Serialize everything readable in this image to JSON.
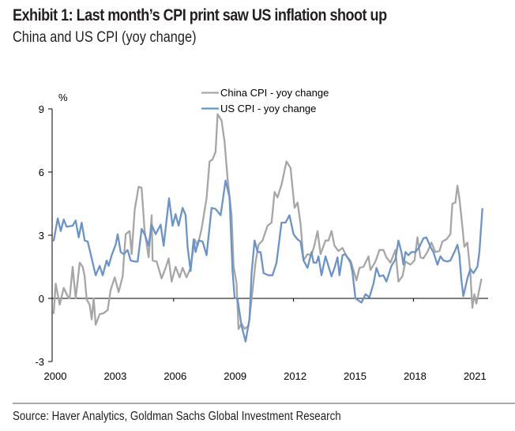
{
  "header": {
    "title": "Exhibit 1: Last month’s CPI print saw US inflation shoot up",
    "subtitle": "China and US CPI (yoy change)"
  },
  "footer": {
    "source": "Source: Haver Analytics, Goldman Sachs Global Investment Research"
  },
  "chart_data": {
    "type": "line",
    "title": "China and US CPI (yoy change)",
    "xlabel": "",
    "ylabel": "%",
    "xlim": [
      2000,
      2021.7
    ],
    "ylim": [
      -3,
      9
    ],
    "x_ticks": [
      2000,
      2003,
      2006,
      2009,
      2012,
      2015,
      2018,
      2021
    ],
    "x_tick_labels": [
      "2000",
      "2003",
      "2006",
      "2009",
      "2012",
      "2015",
      "2018",
      "2021"
    ],
    "y_ticks": [
      -3,
      0,
      3,
      6,
      9
    ],
    "y_tick_labels": [
      "-3",
      "0",
      "3",
      "6",
      "9"
    ],
    "grid": false,
    "legend_position": "top-center",
    "series": [
      {
        "name": "China CPI - yoy change",
        "color": "#a6a6a6",
        "points": [
          [
            2000.0,
            -0.7
          ],
          [
            2000.1,
            0.7
          ],
          [
            2000.3,
            -0.3
          ],
          [
            2000.5,
            0.5
          ],
          [
            2000.75,
            0.0
          ],
          [
            2000.8,
            0.0
          ],
          [
            2000.95,
            1.5
          ],
          [
            2001.1,
            0.0
          ],
          [
            2001.3,
            1.7
          ],
          [
            2001.45,
            1.5
          ],
          [
            2001.55,
            1.05
          ],
          [
            2001.65,
            -0.05
          ],
          [
            2001.8,
            -0.3
          ],
          [
            2001.9,
            -1.0
          ],
          [
            2002.0,
            0.0
          ],
          [
            2002.1,
            -1.25
          ],
          [
            2002.3,
            -0.75
          ],
          [
            2002.5,
            -0.7
          ],
          [
            2002.7,
            -0.55
          ],
          [
            2002.85,
            0.4
          ],
          [
            2003.05,
            1.0
          ],
          [
            2003.25,
            0.3
          ],
          [
            2003.45,
            1.05
          ],
          [
            2003.6,
            3.05
          ],
          [
            2003.8,
            3.2
          ],
          [
            2003.9,
            2.1
          ],
          [
            2004.05,
            4.2
          ],
          [
            2004.25,
            5.3
          ],
          [
            2004.4,
            5.25
          ],
          [
            2004.55,
            3.2
          ],
          [
            2004.75,
            1.95
          ],
          [
            2004.9,
            3.95
          ],
          [
            2004.95,
            1.8
          ],
          [
            2005.15,
            1.75
          ],
          [
            2005.4,
            0.95
          ],
          [
            2005.6,
            1.45
          ],
          [
            2005.75,
            1.9
          ],
          [
            2005.9,
            0.8
          ],
          [
            2006.1,
            1.5
          ],
          [
            2006.3,
            1.0
          ],
          [
            2006.45,
            1.45
          ],
          [
            2006.65,
            1.0
          ],
          [
            2006.85,
            1.45
          ],
          [
            2007.05,
            2.8
          ],
          [
            2007.2,
            2.5
          ],
          [
            2007.4,
            3.3
          ],
          [
            2007.65,
            4.75
          ],
          [
            2007.8,
            6.5
          ],
          [
            2007.95,
            6.6
          ],
          [
            2008.1,
            6.95
          ],
          [
            2008.2,
            8.75
          ],
          [
            2008.4,
            8.45
          ],
          [
            2008.55,
            7.45
          ],
          [
            2008.7,
            5.7
          ],
          [
            2008.9,
            3.95
          ],
          [
            2009.0,
            1.55
          ],
          [
            2009.15,
            0.7
          ],
          [
            2009.25,
            -1.45
          ],
          [
            2009.4,
            -1.2
          ],
          [
            2009.55,
            -1.45
          ],
          [
            2009.75,
            -1.3
          ],
          [
            2009.9,
            -0.05
          ],
          [
            2010.1,
            1.7
          ],
          [
            2010.25,
            2.55
          ],
          [
            2010.45,
            2.75
          ],
          [
            2010.7,
            3.45
          ],
          [
            2010.9,
            3.6
          ],
          [
            2011.05,
            5.05
          ],
          [
            2011.2,
            4.8
          ],
          [
            2011.4,
            5.4
          ],
          [
            2011.65,
            6.5
          ],
          [
            2011.85,
            6.2
          ],
          [
            2012.05,
            4.3
          ],
          [
            2012.2,
            4.55
          ],
          [
            2012.35,
            3.55
          ],
          [
            2012.5,
            1.8
          ],
          [
            2012.7,
            2.1
          ],
          [
            2012.9,
            2.05
          ],
          [
            2013.05,
            2.55
          ],
          [
            2013.2,
            3.2
          ],
          [
            2013.35,
            2.1
          ],
          [
            2013.6,
            2.75
          ],
          [
            2013.75,
            2.75
          ],
          [
            2013.9,
            3.2
          ],
          [
            2014.05,
            2.5
          ],
          [
            2014.25,
            2.25
          ],
          [
            2014.45,
            2.4
          ],
          [
            2014.65,
            2.0
          ],
          [
            2014.85,
            1.8
          ],
          [
            2014.95,
            1.5
          ],
          [
            2015.15,
            0.85
          ],
          [
            2015.3,
            1.45
          ],
          [
            2015.5,
            1.5
          ],
          [
            2015.75,
            2.0
          ],
          [
            2015.85,
            1.35
          ],
          [
            2016.1,
            1.75
          ],
          [
            2016.3,
            2.3
          ],
          [
            2016.5,
            2.3
          ],
          [
            2016.65,
            1.95
          ],
          [
            2016.85,
            1.7
          ],
          [
            2017.1,
            2.3
          ],
          [
            2017.25,
            0.8
          ],
          [
            2017.45,
            1.05
          ],
          [
            2017.6,
            1.75
          ],
          [
            2017.85,
            1.6
          ],
          [
            2018.05,
            1.8
          ],
          [
            2018.2,
            2.9
          ],
          [
            2018.35,
            1.95
          ],
          [
            2018.5,
            1.9
          ],
          [
            2018.7,
            2.2
          ],
          [
            2018.9,
            2.65
          ],
          [
            2019.1,
            2.2
          ],
          [
            2019.3,
            2.25
          ],
          [
            2019.45,
            2.7
          ],
          [
            2019.65,
            2.8
          ],
          [
            2019.85,
            3.05
          ],
          [
            2019.95,
            4.5
          ],
          [
            2020.1,
            4.55
          ],
          [
            2020.2,
            5.35
          ],
          [
            2020.3,
            4.75
          ],
          [
            2020.45,
            3.4
          ],
          [
            2020.55,
            2.45
          ],
          [
            2020.7,
            2.65
          ],
          [
            2020.85,
            1.2
          ],
          [
            2020.95,
            -0.45
          ],
          [
            2021.05,
            0.2
          ],
          [
            2021.15,
            -0.25
          ],
          [
            2021.25,
            0.2
          ],
          [
            2021.4,
            0.9
          ]
        ]
      },
      {
        "name": "US CPI - yoy change",
        "color": "#6b93c9",
        "points": [
          [
            2000.0,
            2.75
          ],
          [
            2000.2,
            3.8
          ],
          [
            2000.35,
            3.2
          ],
          [
            2000.5,
            3.75
          ],
          [
            2000.65,
            3.4
          ],
          [
            2000.95,
            3.45
          ],
          [
            2001.1,
            3.7
          ],
          [
            2001.25,
            2.9
          ],
          [
            2001.4,
            3.6
          ],
          [
            2001.55,
            2.75
          ],
          [
            2001.7,
            2.7
          ],
          [
            2001.9,
            1.9
          ],
          [
            2002.1,
            1.1
          ],
          [
            2002.3,
            1.55
          ],
          [
            2002.45,
            1.1
          ],
          [
            2002.65,
            1.8
          ],
          [
            2002.75,
            1.55
          ],
          [
            2002.9,
            2.05
          ],
          [
            2003.1,
            2.55
          ],
          [
            2003.2,
            3.05
          ],
          [
            2003.35,
            2.2
          ],
          [
            2003.5,
            2.1
          ],
          [
            2003.7,
            2.3
          ],
          [
            2003.85,
            1.8
          ],
          [
            2004.05,
            1.75
          ],
          [
            2004.2,
            1.75
          ],
          [
            2004.4,
            3.3
          ],
          [
            2004.55,
            3.05
          ],
          [
            2004.75,
            2.5
          ],
          [
            2004.9,
            3.5
          ],
          [
            2005.1,
            3.05
          ],
          [
            2005.35,
            3.5
          ],
          [
            2005.5,
            2.5
          ],
          [
            2005.77,
            4.75
          ],
          [
            2005.95,
            3.45
          ],
          [
            2006.1,
            4.0
          ],
          [
            2006.25,
            3.45
          ],
          [
            2006.45,
            4.3
          ],
          [
            2006.6,
            3.95
          ],
          [
            2006.7,
            2.45
          ],
          [
            2006.85,
            1.3
          ],
          [
            2007.0,
            2.8
          ],
          [
            2007.1,
            2.2
          ],
          [
            2007.25,
            2.75
          ],
          [
            2007.45,
            2.7
          ],
          [
            2007.65,
            2.05
          ],
          [
            2007.9,
            4.3
          ],
          [
            2008.1,
            4.25
          ],
          [
            2008.35,
            3.95
          ],
          [
            2008.6,
            5.6
          ],
          [
            2008.8,
            4.8
          ],
          [
            2008.95,
            1.3
          ],
          [
            2009.05,
            0.05
          ],
          [
            2009.2,
            -0.05
          ],
          [
            2009.4,
            -1.3
          ],
          [
            2009.6,
            -2.05
          ],
          [
            2009.8,
            -0.95
          ],
          [
            2009.9,
            1.2
          ],
          [
            2010.05,
            2.75
          ],
          [
            2010.2,
            2.2
          ],
          [
            2010.35,
            2.2
          ],
          [
            2010.5,
            1.2
          ],
          [
            2010.75,
            1.1
          ],
          [
            2010.95,
            1.1
          ],
          [
            2011.15,
            1.7
          ],
          [
            2011.4,
            3.6
          ],
          [
            2011.6,
            3.6
          ],
          [
            2011.8,
            3.95
          ],
          [
            2012.0,
            3.05
          ],
          [
            2012.2,
            2.8
          ],
          [
            2012.35,
            2.7
          ],
          [
            2012.5,
            1.8
          ],
          [
            2012.7,
            1.45
          ],
          [
            2012.9,
            2.2
          ],
          [
            2013.0,
            1.7
          ],
          [
            2013.15,
            1.7
          ],
          [
            2013.25,
            2.0
          ],
          [
            2013.4,
            1.1
          ],
          [
            2013.6,
            2.0
          ],
          [
            2013.9,
            1.05
          ],
          [
            2014.05,
            1.45
          ],
          [
            2014.2,
            1.95
          ],
          [
            2014.3,
            1.1
          ],
          [
            2014.45,
            2.05
          ],
          [
            2014.6,
            2.1
          ],
          [
            2014.85,
            1.7
          ],
          [
            2014.95,
            1.25
          ],
          [
            2015.1,
            0.0
          ],
          [
            2015.25,
            -0.1
          ],
          [
            2015.4,
            -0.2
          ],
          [
            2015.6,
            0.2
          ],
          [
            2015.8,
            0.05
          ],
          [
            2016.0,
            0.7
          ],
          [
            2016.15,
            1.45
          ],
          [
            2016.3,
            1.05
          ],
          [
            2016.5,
            1.1
          ],
          [
            2016.65,
            0.8
          ],
          [
            2016.9,
            1.55
          ],
          [
            2017.1,
            1.85
          ],
          [
            2017.25,
            2.75
          ],
          [
            2017.4,
            2.2
          ],
          [
            2017.5,
            1.6
          ],
          [
            2017.6,
            2.2
          ],
          [
            2017.75,
            2.05
          ],
          [
            2017.9,
            2.2
          ],
          [
            2018.1,
            2.2
          ],
          [
            2018.3,
            2.45
          ],
          [
            2018.5,
            2.85
          ],
          [
            2018.65,
            2.9
          ],
          [
            2018.85,
            2.45
          ],
          [
            2019.0,
            2.2
          ],
          [
            2019.2,
            1.6
          ],
          [
            2019.35,
            2.0
          ],
          [
            2019.5,
            1.8
          ],
          [
            2019.7,
            1.75
          ],
          [
            2019.85,
            1.8
          ],
          [
            2020.05,
            2.2
          ],
          [
            2020.2,
            2.55
          ],
          [
            2020.3,
            2.05
          ],
          [
            2020.4,
            0.9
          ],
          [
            2020.5,
            0.1
          ],
          [
            2020.7,
            0.95
          ],
          [
            2020.85,
            1.4
          ],
          [
            2021.0,
            1.2
          ],
          [
            2021.2,
            1.5
          ],
          [
            2021.3,
            2.2
          ],
          [
            2021.45,
            4.25
          ]
        ]
      }
    ]
  }
}
